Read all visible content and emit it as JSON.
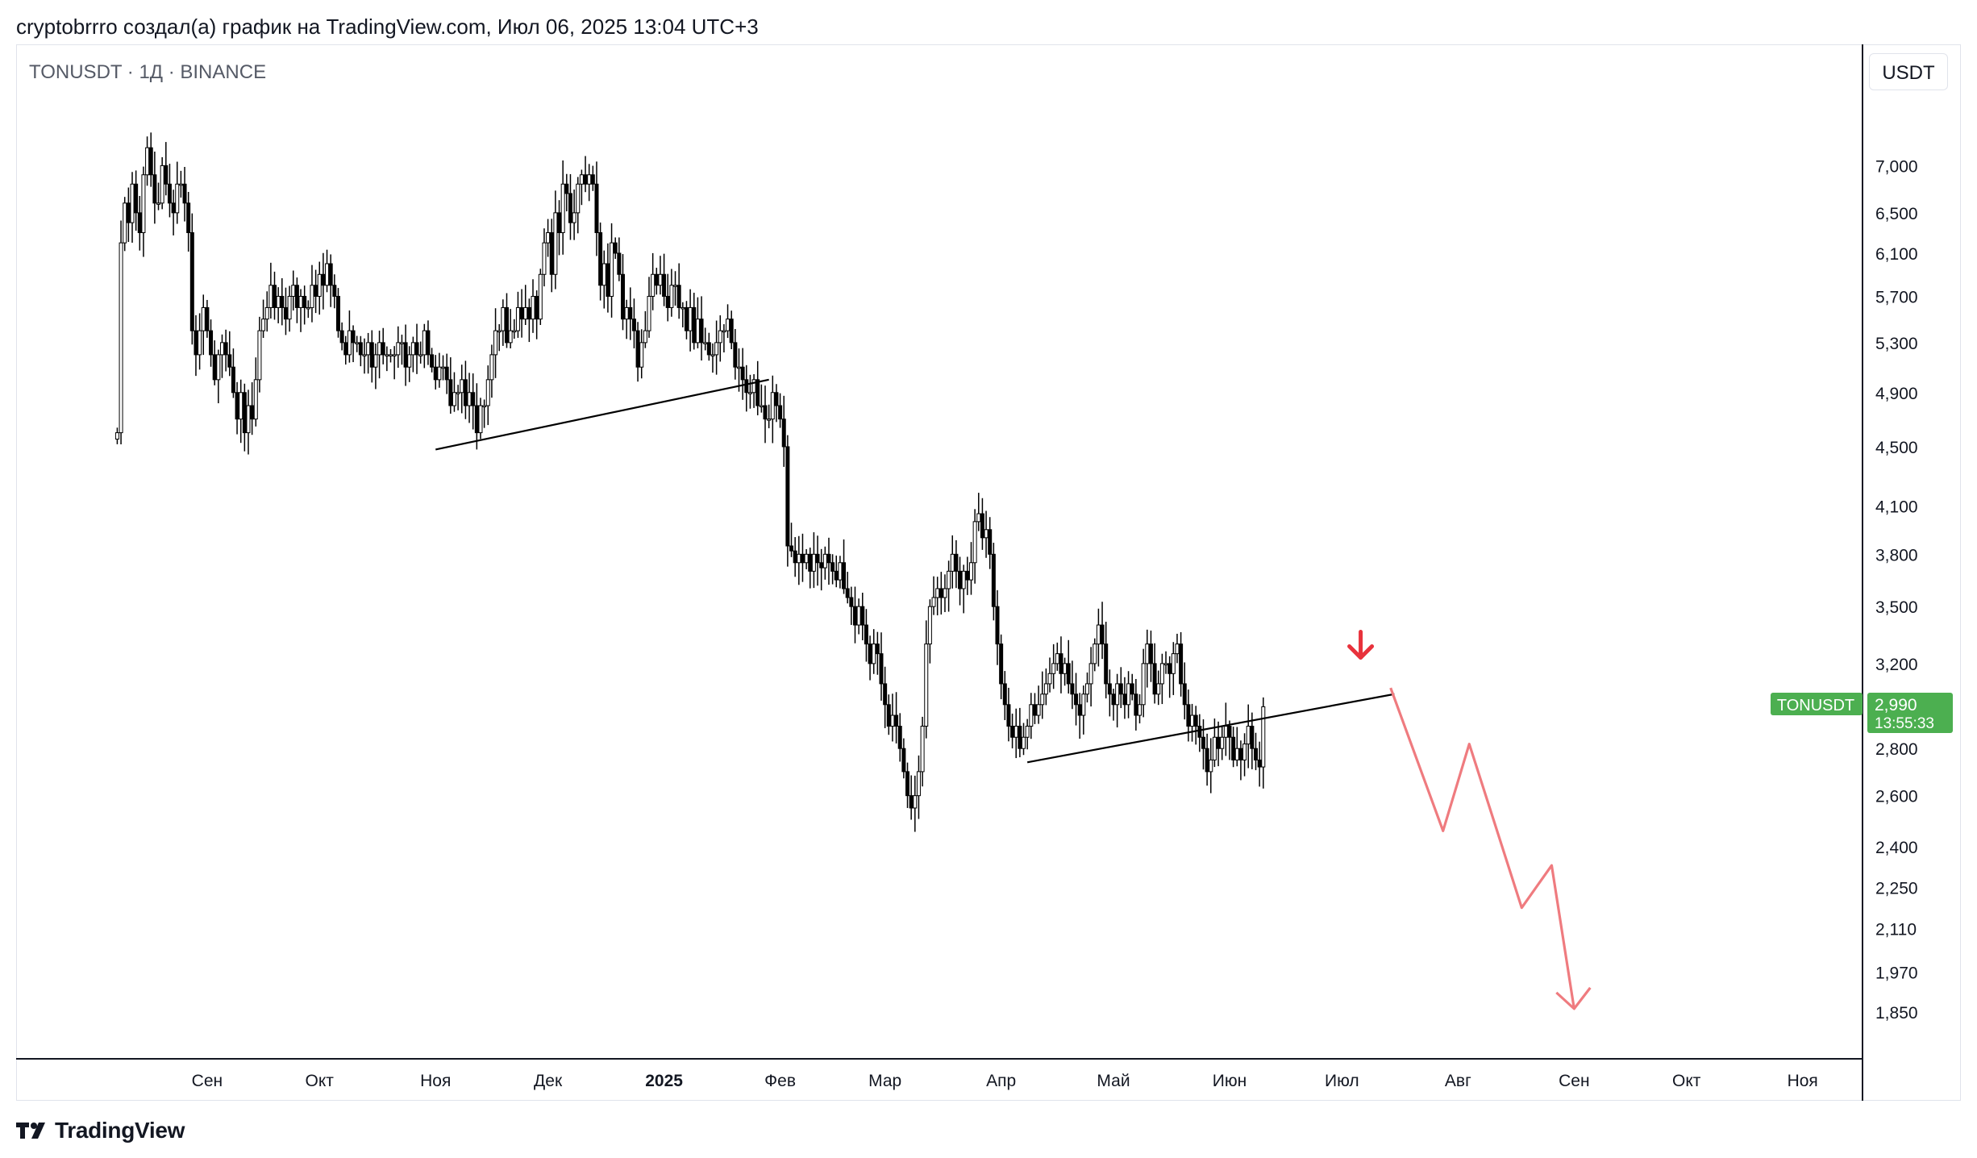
{
  "header": {
    "caption": "cryptobrrro создал(а) график на TradingView.com, Июл 06, 2025 13:04 UTC+3"
  },
  "chart_header": {
    "symbol_line": "TONUSDT · 1Д · BINANCE",
    "currency_button": "USDT"
  },
  "last_price_badge": {
    "symbol": "TONUSDT",
    "price": "2,990",
    "countdown": "13:55:33",
    "color": "#4caf50"
  },
  "footer": {
    "brand": "TradingView"
  },
  "colors": {
    "candle": "#000000",
    "trendline": "#000000",
    "projection": "#ef7b7f",
    "arrow": "#e8323c",
    "grid": "#e0e3eb"
  },
  "chart_data": {
    "type": "candlestick",
    "title": "TONUSDT · 1Д · BINANCE",
    "scale": "log",
    "y_axis_position": "right",
    "grid": false,
    "ylim": [
      1.77,
      7.9
    ],
    "xlim": [
      "2024-07-12",
      "2025-11-17"
    ],
    "y_ticks": [
      {
        "value": 7.0,
        "label": "7,000"
      },
      {
        "value": 6.5,
        "label": "6,500"
      },
      {
        "value": 6.1,
        "label": "6,100"
      },
      {
        "value": 5.7,
        "label": "5,700"
      },
      {
        "value": 5.3,
        "label": "5,300"
      },
      {
        "value": 4.9,
        "label": "4,900"
      },
      {
        "value": 4.5,
        "label": "4,500"
      },
      {
        "value": 4.1,
        "label": "4,100"
      },
      {
        "value": 3.8,
        "label": "3,800"
      },
      {
        "value": 3.5,
        "label": "3,500"
      },
      {
        "value": 3.2,
        "label": "3,200"
      },
      {
        "value": 2.8,
        "label": "2,800"
      },
      {
        "value": 2.6,
        "label": "2,600"
      },
      {
        "value": 2.4,
        "label": "2,400"
      },
      {
        "value": 2.25,
        "label": "2,250"
      },
      {
        "value": 2.11,
        "label": "2,110"
      },
      {
        "value": 1.97,
        "label": "1,970"
      },
      {
        "value": 1.85,
        "label": "1,850"
      }
    ],
    "x_ticks": [
      {
        "date": "2024-09-01",
        "label": "Сен",
        "bold": false
      },
      {
        "date": "2024-10-01",
        "label": "Окт",
        "bold": false
      },
      {
        "date": "2024-11-01",
        "label": "Ноя",
        "bold": false
      },
      {
        "date": "2024-12-01",
        "label": "Дек",
        "bold": false
      },
      {
        "date": "2025-01-01",
        "label": "2025",
        "bold": true
      },
      {
        "date": "2025-02-01",
        "label": "Фев",
        "bold": false
      },
      {
        "date": "2025-03-01",
        "label": "Мар",
        "bold": false
      },
      {
        "date": "2025-04-01",
        "label": "Апр",
        "bold": false
      },
      {
        "date": "2025-05-01",
        "label": "Май",
        "bold": false
      },
      {
        "date": "2025-06-01",
        "label": "Июн",
        "bold": false
      },
      {
        "date": "2025-07-01",
        "label": "Июл",
        "bold": false
      },
      {
        "date": "2025-08-01",
        "label": "Авг",
        "bold": false
      },
      {
        "date": "2025-09-01",
        "label": "Сен",
        "bold": false
      },
      {
        "date": "2025-10-01",
        "label": "Окт",
        "bold": false
      },
      {
        "date": "2025-11-01",
        "label": "Ноя",
        "bold": false
      }
    ],
    "start_date": "2024-08-08",
    "closes": [
      4.6,
      6.2,
      6.6,
      6.4,
      6.8,
      6.5,
      6.3,
      6.9,
      7.2,
      6.9,
      6.6,
      6.6,
      7.0,
      6.8,
      6.6,
      6.5,
      6.8,
      6.8,
      6.6,
      6.3,
      5.4,
      5.2,
      5.4,
      5.6,
      5.4,
      5.2,
      5.0,
      5.2,
      5.3,
      5.2,
      5.1,
      4.9,
      4.7,
      4.9,
      4.6,
      4.8,
      4.7,
      5.0,
      5.4,
      5.5,
      5.6,
      5.8,
      5.6,
      5.7,
      5.6,
      5.5,
      5.7,
      5.8,
      5.6,
      5.7,
      5.6,
      5.6,
      5.8,
      5.7,
      5.9,
      5.8,
      6.0,
      5.8,
      5.7,
      5.4,
      5.3,
      5.2,
      5.4,
      5.3,
      5.3,
      5.2,
      5.2,
      5.3,
      5.1,
      5.2,
      5.3,
      5.2,
      5.2,
      5.2,
      5.2,
      5.3,
      5.3,
      5.1,
      5.2,
      5.3,
      5.2,
      5.2,
      5.4,
      5.2,
      5.1,
      5.0,
      5.1,
      5.1,
      5.0,
      4.8,
      4.9,
      4.9,
      5.0,
      4.8,
      4.9,
      4.8,
      4.6,
      4.8,
      4.8,
      5.0,
      5.2,
      5.4,
      5.4,
      5.6,
      5.3,
      5.4,
      5.4,
      5.6,
      5.5,
      5.6,
      5.5,
      5.7,
      5.5,
      5.9,
      6.2,
      6.3,
      5.9,
      6.5,
      6.3,
      6.8,
      6.7,
      6.4,
      6.5,
      6.8,
      6.9,
      6.8,
      6.9,
      6.8,
      6.3,
      5.8,
      6.0,
      5.7,
      6.2,
      6.1,
      5.9,
      5.5,
      5.6,
      5.5,
      5.4,
      5.1,
      5.3,
      5.4,
      5.7,
      5.9,
      5.8,
      5.9,
      5.7,
      5.6,
      5.8,
      5.8,
      5.6,
      5.6,
      5.4,
      5.6,
      5.3,
      5.5,
      5.3,
      5.3,
      5.2,
      5.2,
      5.3,
      5.4,
      5.4,
      5.5,
      5.3,
      5.1,
      5.1,
      5.0,
      4.9,
      4.9,
      5.0,
      4.8,
      4.8,
      4.7,
      4.7,
      4.9,
      4.8,
      4.7,
      4.5,
      3.85,
      3.82,
      3.75,
      3.8,
      3.75,
      3.8,
      3.7,
      3.8,
      3.75,
      3.72,
      3.8,
      3.75,
      3.7,
      3.65,
      3.75,
      3.6,
      3.55,
      3.5,
      3.4,
      3.5,
      3.4,
      3.3,
      3.2,
      3.3,
      3.25,
      3.1,
      3.0,
      2.9,
      2.95,
      2.9,
      2.8,
      2.7,
      2.6,
      2.55,
      2.6,
      2.7,
      2.9,
      3.3,
      3.5,
      3.55,
      3.6,
      3.55,
      3.6,
      3.7,
      3.8,
      3.7,
      3.6,
      3.7,
      3.65,
      3.75,
      4.0,
      4.05,
      3.9,
      3.95,
      3.8,
      3.5,
      3.3,
      3.1,
      3.0,
      2.9,
      2.85,
      2.9,
      2.8,
      2.85,
      2.9,
      3.0,
      2.95,
      3.0,
      3.05,
      3.1,
      3.15,
      3.2,
      3.25,
      3.15,
      3.2,
      3.1,
      3.05,
      3.0,
      2.95,
      3.05,
      3.1,
      3.2,
      3.3,
      3.4,
      3.3,
      3.1,
      3.05,
      3.0,
      3.1,
      3.05,
      3.0,
      3.1,
      3.05,
      2.95,
      3.0,
      3.2,
      3.3,
      3.2,
      3.05,
      3.1,
      3.2,
      3.2,
      3.15,
      3.25,
      3.3,
      3.1,
      3.0,
      2.9,
      2.95,
      2.9,
      2.85,
      2.8,
      2.7,
      2.75,
      2.85,
      2.8,
      2.85,
      2.9,
      2.85,
      2.75,
      2.8,
      2.75,
      2.82,
      2.9,
      2.8,
      2.75,
      2.72,
      2.99
    ],
    "trendlines": [
      {
        "from": {
          "date": "2024-11-01",
          "value": 4.48
        },
        "to": {
          "date": "2025-01-29",
          "value": 5.0
        }
      },
      {
        "from": {
          "date": "2025-04-08",
          "value": 2.74
        },
        "to": {
          "date": "2025-07-15",
          "value": 3.05
        }
      }
    ],
    "projection_path": [
      {
        "date": "2025-07-14",
        "value": 3.08
      },
      {
        "date": "2025-07-28",
        "value": 2.46
      },
      {
        "date": "2025-08-04",
        "value": 2.82
      },
      {
        "date": "2025-08-18",
        "value": 2.18
      },
      {
        "date": "2025-08-26",
        "value": 2.33
      },
      {
        "date": "2025-09-01",
        "value": 1.86
      }
    ],
    "down_arrow": {
      "date": "2025-07-06",
      "value": 3.23
    }
  }
}
